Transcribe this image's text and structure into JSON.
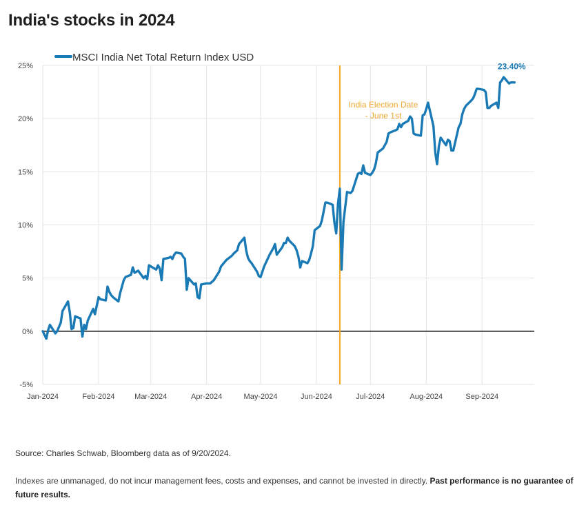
{
  "title": "India's stocks in 2024",
  "source": "Source: Charles Schwab, Bloomberg data as of 9/20/2024.",
  "disclaimer_plain": "Indexes are unmanaged, do not incur management fees, costs and expenses, and cannot be invested in directly. ",
  "disclaimer_bold": "Past performance is no guarantee of future results.",
  "colors": {
    "series": "#1a7ab5",
    "event_line": "#f5a623",
    "zero_line": "#222222",
    "grid": "#e5e5e5"
  },
  "chart_data": {
    "type": "line",
    "title": "",
    "xlabel": "",
    "ylabel": "",
    "ylim": [
      -5,
      25
    ],
    "y_ticks": [
      -5,
      0,
      5,
      10,
      15,
      20,
      25
    ],
    "y_tick_labels": [
      "-5%",
      "0%",
      "5%",
      "10%",
      "15%",
      "20%",
      "25%"
    ],
    "x_ticks": [
      "2024-01-01",
      "2024-02-01",
      "2024-03-01",
      "2024-04-01",
      "2024-05-01",
      "2024-06-01",
      "2024-07-01",
      "2024-08-01",
      "2024-09-01"
    ],
    "x_tick_labels": [
      "Jan-2024",
      "Feb-2024",
      "Mar-2024",
      "Apr-2024",
      "May-2024",
      "Jun-2024",
      "Jul-2024",
      "Aug-2024",
      "Sep-2024"
    ],
    "xlim": [
      "2024-01-01",
      "2024-09-30"
    ],
    "grid": true,
    "legend": "top-left",
    "series": [
      {
        "name": "MSCI India Net Total Return Index USD",
        "points": [
          [
            "2024-01-01",
            0.0
          ],
          [
            "2024-01-03",
            -0.7
          ],
          [
            "2024-01-04",
            0.1
          ],
          [
            "2024-01-05",
            0.6
          ],
          [
            "2024-01-08",
            -0.2
          ],
          [
            "2024-01-09",
            0.0
          ],
          [
            "2024-01-11",
            0.8
          ],
          [
            "2024-01-12",
            1.9
          ],
          [
            "2024-01-15",
            2.8
          ],
          [
            "2024-01-16",
            1.8
          ],
          [
            "2024-01-17",
            0.2
          ],
          [
            "2024-01-18",
            0.3
          ],
          [
            "2024-01-19",
            1.4
          ],
          [
            "2024-01-22",
            1.2
          ],
          [
            "2024-01-23",
            -0.5
          ],
          [
            "2024-01-24",
            0.6
          ],
          [
            "2024-01-25",
            0.2
          ],
          [
            "2024-01-26",
            1.0
          ],
          [
            "2024-01-29",
            2.1
          ],
          [
            "2024-01-30",
            1.6
          ],
          [
            "2024-02-01",
            3.2
          ],
          [
            "2024-02-02",
            3.0
          ],
          [
            "2024-02-05",
            2.9
          ],
          [
            "2024-02-06",
            4.2
          ],
          [
            "2024-02-07",
            3.7
          ],
          [
            "2024-02-08",
            3.4
          ],
          [
            "2024-02-09",
            3.2
          ],
          [
            "2024-02-12",
            2.8
          ],
          [
            "2024-02-13",
            3.6
          ],
          [
            "2024-02-15",
            4.8
          ],
          [
            "2024-02-16",
            5.1
          ],
          [
            "2024-02-19",
            5.3
          ],
          [
            "2024-02-20",
            6.0
          ],
          [
            "2024-02-21",
            5.5
          ],
          [
            "2024-02-23",
            5.7
          ],
          [
            "2024-02-26",
            5.0
          ],
          [
            "2024-02-27",
            5.2
          ],
          [
            "2024-02-28",
            4.9
          ],
          [
            "2024-02-29",
            6.2
          ],
          [
            "2024-03-01",
            6.1
          ],
          [
            "2024-03-04",
            5.8
          ],
          [
            "2024-03-05",
            6.2
          ],
          [
            "2024-03-06",
            5.9
          ],
          [
            "2024-03-07",
            4.8
          ],
          [
            "2024-03-08",
            6.8
          ],
          [
            "2024-03-11",
            6.9
          ],
          [
            "2024-03-12",
            7.0
          ],
          [
            "2024-03-13",
            6.8
          ],
          [
            "2024-03-14",
            7.2
          ],
          [
            "2024-03-15",
            7.4
          ],
          [
            "2024-03-18",
            7.3
          ],
          [
            "2024-03-19",
            7.0
          ],
          [
            "2024-03-20",
            6.8
          ],
          [
            "2024-03-21",
            3.9
          ],
          [
            "2024-03-22",
            5.0
          ],
          [
            "2024-03-25",
            4.4
          ],
          [
            "2024-03-26",
            4.5
          ],
          [
            "2024-03-27",
            3.2
          ],
          [
            "2024-03-28",
            3.1
          ],
          [
            "2024-03-29",
            4.4
          ],
          [
            "2024-04-01",
            4.5
          ],
          [
            "2024-04-03",
            4.5
          ],
          [
            "2024-04-05",
            4.8
          ],
          [
            "2024-04-08",
            5.6
          ],
          [
            "2024-04-09",
            6.1
          ],
          [
            "2024-04-10",
            6.3
          ],
          [
            "2024-04-12",
            6.7
          ],
          [
            "2024-04-15",
            7.1
          ],
          [
            "2024-04-16",
            7.3
          ],
          [
            "2024-04-18",
            7.6
          ],
          [
            "2024-04-19",
            8.2
          ],
          [
            "2024-04-22",
            8.8
          ],
          [
            "2024-04-23",
            7.6
          ],
          [
            "2024-04-24",
            6.9
          ],
          [
            "2024-04-25",
            6.6
          ],
          [
            "2024-04-26",
            6.4
          ],
          [
            "2024-04-29",
            5.6
          ],
          [
            "2024-04-30",
            5.2
          ],
          [
            "2024-05-01",
            5.1
          ],
          [
            "2024-05-03",
            6.1
          ],
          [
            "2024-05-06",
            7.2
          ],
          [
            "2024-05-08",
            7.8
          ],
          [
            "2024-05-09",
            8.2
          ],
          [
            "2024-05-10",
            7.2
          ],
          [
            "2024-05-13",
            7.9
          ],
          [
            "2024-05-14",
            8.3
          ],
          [
            "2024-05-15",
            8.3
          ],
          [
            "2024-05-16",
            8.8
          ],
          [
            "2024-05-17",
            8.5
          ],
          [
            "2024-05-20",
            8.0
          ],
          [
            "2024-05-21",
            7.6
          ],
          [
            "2024-05-22",
            7.0
          ],
          [
            "2024-05-23",
            6.0
          ],
          [
            "2024-05-24",
            6.6
          ],
          [
            "2024-05-27",
            6.4
          ],
          [
            "2024-05-28",
            6.7
          ],
          [
            "2024-05-29",
            7.3
          ],
          [
            "2024-05-30",
            8.0
          ],
          [
            "2024-05-31",
            9.5
          ],
          [
            "2024-06-03",
            9.9
          ],
          [
            "2024-06-04",
            10.4
          ],
          [
            "2024-06-06",
            12.1
          ],
          [
            "2024-06-07",
            12.1
          ],
          [
            "2024-06-10",
            11.9
          ],
          [
            "2024-06-11",
            10.2
          ],
          [
            "2024-06-12",
            9.2
          ],
          [
            "2024-06-13",
            12.0
          ],
          [
            "2024-06-14",
            13.4
          ],
          [
            "2024-06-15",
            5.8
          ],
          [
            "2024-06-16",
            10.3
          ],
          [
            "2024-06-18",
            13.1
          ],
          [
            "2024-06-20",
            13.0
          ],
          [
            "2024-06-21",
            13.2
          ],
          [
            "2024-06-24",
            14.8
          ],
          [
            "2024-06-25",
            14.9
          ],
          [
            "2024-06-26",
            14.8
          ],
          [
            "2024-06-27",
            15.6
          ],
          [
            "2024-06-28",
            14.9
          ],
          [
            "2024-07-01",
            14.7
          ],
          [
            "2024-07-02",
            14.9
          ],
          [
            "2024-07-03",
            15.2
          ],
          [
            "2024-07-04",
            15.8
          ],
          [
            "2024-07-05",
            16.8
          ],
          [
            "2024-07-08",
            17.2
          ],
          [
            "2024-07-09",
            17.5
          ],
          [
            "2024-07-10",
            17.8
          ],
          [
            "2024-07-11",
            18.6
          ],
          [
            "2024-07-12",
            18.7
          ],
          [
            "2024-07-15",
            18.9
          ],
          [
            "2024-07-16",
            19.0
          ],
          [
            "2024-07-17",
            19.5
          ],
          [
            "2024-07-18",
            19.2
          ],
          [
            "2024-07-19",
            19.5
          ],
          [
            "2024-07-22",
            19.8
          ],
          [
            "2024-07-23",
            20.2
          ],
          [
            "2024-07-24",
            20.0
          ],
          [
            "2024-07-25",
            18.6
          ],
          [
            "2024-07-26",
            18.5
          ],
          [
            "2024-07-29",
            18.4
          ],
          [
            "2024-07-30",
            20.3
          ],
          [
            "2024-07-31",
            20.4
          ],
          [
            "2024-08-01",
            20.9
          ],
          [
            "2024-08-02",
            21.5
          ],
          [
            "2024-08-05",
            19.3
          ],
          [
            "2024-08-06",
            16.8
          ],
          [
            "2024-08-07",
            15.7
          ],
          [
            "2024-08-08",
            17.4
          ],
          [
            "2024-08-09",
            18.2
          ],
          [
            "2024-08-12",
            17.5
          ],
          [
            "2024-08-13",
            18.0
          ],
          [
            "2024-08-14",
            17.9
          ],
          [
            "2024-08-15",
            17.0
          ],
          [
            "2024-08-16",
            17.0
          ],
          [
            "2024-08-19",
            19.2
          ],
          [
            "2024-08-20",
            19.5
          ],
          [
            "2024-08-21",
            20.4
          ],
          [
            "2024-08-22",
            20.9
          ],
          [
            "2024-08-23",
            21.2
          ],
          [
            "2024-08-26",
            21.7
          ],
          [
            "2024-08-27",
            21.9
          ],
          [
            "2024-08-28",
            22.3
          ],
          [
            "2024-08-29",
            22.8
          ],
          [
            "2024-08-30",
            22.8
          ],
          [
            "2024-09-02",
            22.7
          ],
          [
            "2024-09-03",
            22.5
          ],
          [
            "2024-09-04",
            21.0
          ],
          [
            "2024-09-05",
            21.0
          ],
          [
            "2024-09-06",
            21.2
          ],
          [
            "2024-09-09",
            21.5
          ],
          [
            "2024-09-10",
            21.0
          ],
          [
            "2024-09-11",
            23.4
          ],
          [
            "2024-09-12",
            23.6
          ],
          [
            "2024-09-13",
            23.9
          ],
          [
            "2024-09-16",
            23.3
          ],
          [
            "2024-09-17",
            23.4
          ],
          [
            "2024-09-19",
            23.4
          ]
        ]
      }
    ],
    "end_label": {
      "date": "2024-09-19",
      "text": "23.40%"
    },
    "event": {
      "date": "2024-06-14",
      "label_line1": "India Election Date",
      "label_line2": "- June 1st"
    },
    "reference_line": {
      "y": 0
    }
  }
}
